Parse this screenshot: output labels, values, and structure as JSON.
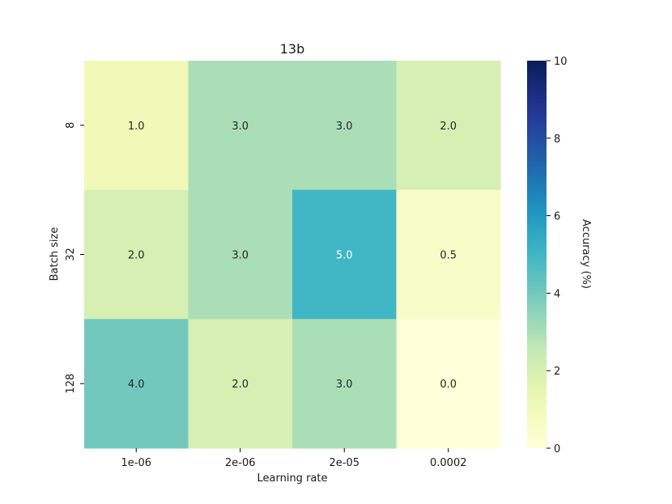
{
  "chart_data": {
    "type": "heatmap",
    "title": "13b",
    "xlabel": "Learning rate",
    "ylabel": "Batch size",
    "x_categories": [
      "1e-06",
      "2e-06",
      "2e-05",
      "0.0002"
    ],
    "y_categories": [
      "8",
      "32",
      "128"
    ],
    "values": [
      [
        1.0,
        3.0,
        3.0,
        2.0
      ],
      [
        2.0,
        3.0,
        5.0,
        0.5
      ],
      [
        4.0,
        2.0,
        3.0,
        0.0
      ]
    ],
    "value_labels": [
      [
        "1.0",
        "3.0",
        "3.0",
        "2.0"
      ],
      [
        "2.0",
        "3.0",
        "5.0",
        "0.5"
      ],
      [
        "4.0",
        "2.0",
        "3.0",
        "0.0"
      ]
    ],
    "colorbar": {
      "label": "Accuracy (%)",
      "range": [
        0,
        10
      ],
      "ticks": [
        "0",
        "2",
        "4",
        "6",
        "8",
        "10"
      ],
      "colormap": "YlGnBu"
    }
  }
}
